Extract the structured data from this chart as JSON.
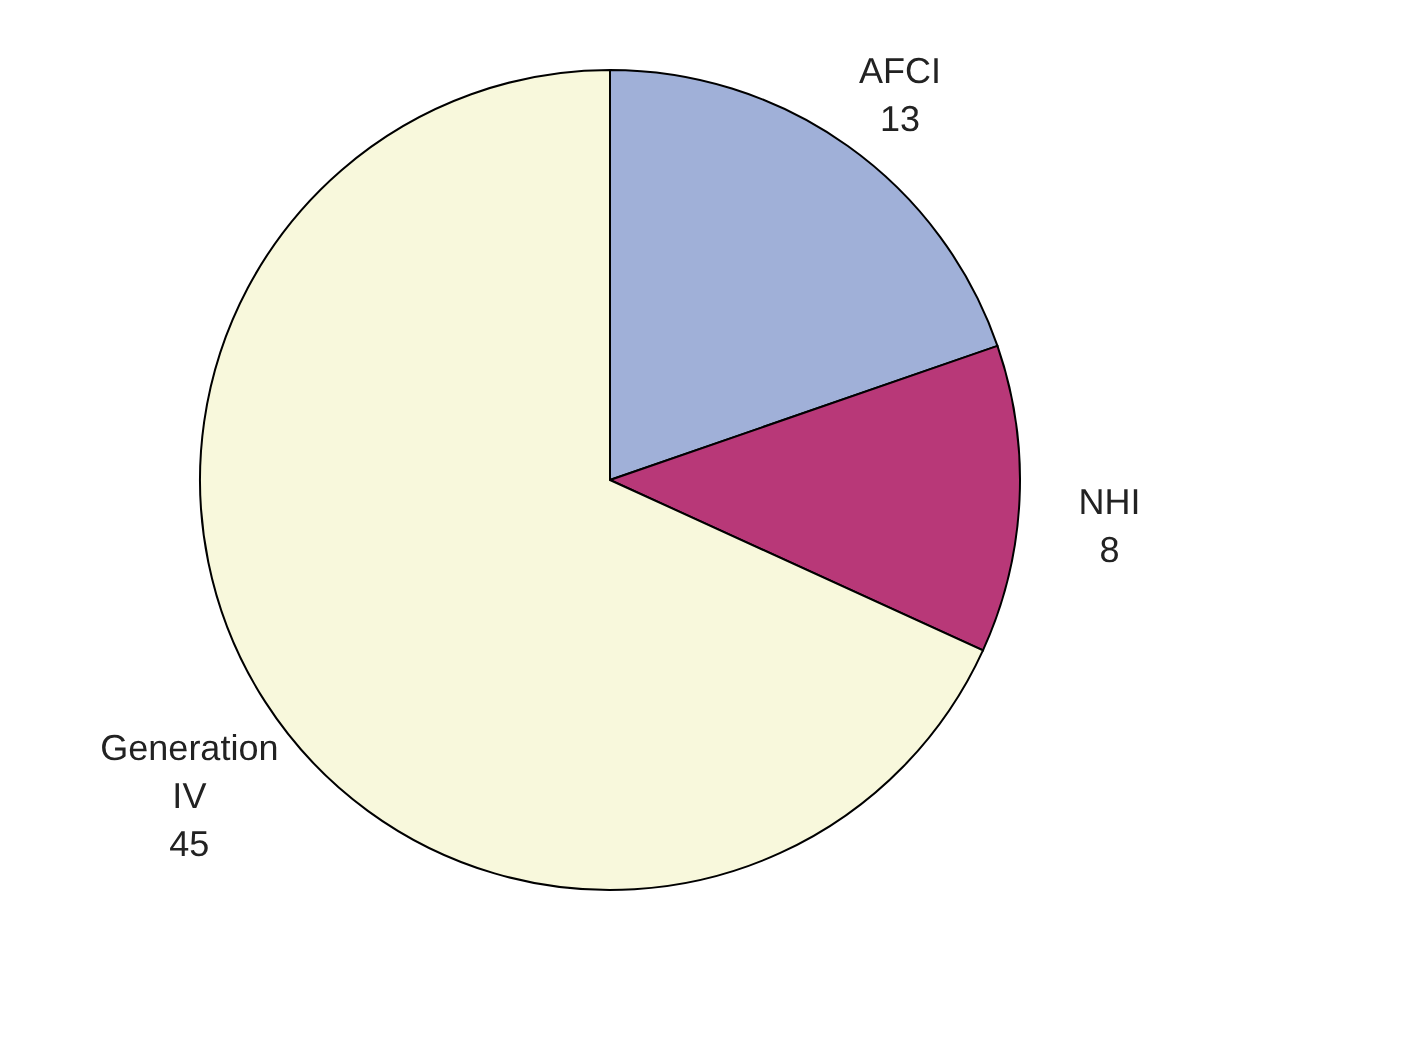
{
  "chart_data": {
    "type": "pie",
    "categories": [
      "AFCI",
      "NHI",
      "Generation IV"
    ],
    "values": [
      13,
      8,
      45
    ],
    "colors": [
      "#a0b0d8",
      "#b83878",
      "#f8f8dc"
    ],
    "data_labels": true,
    "legend": false
  }
}
